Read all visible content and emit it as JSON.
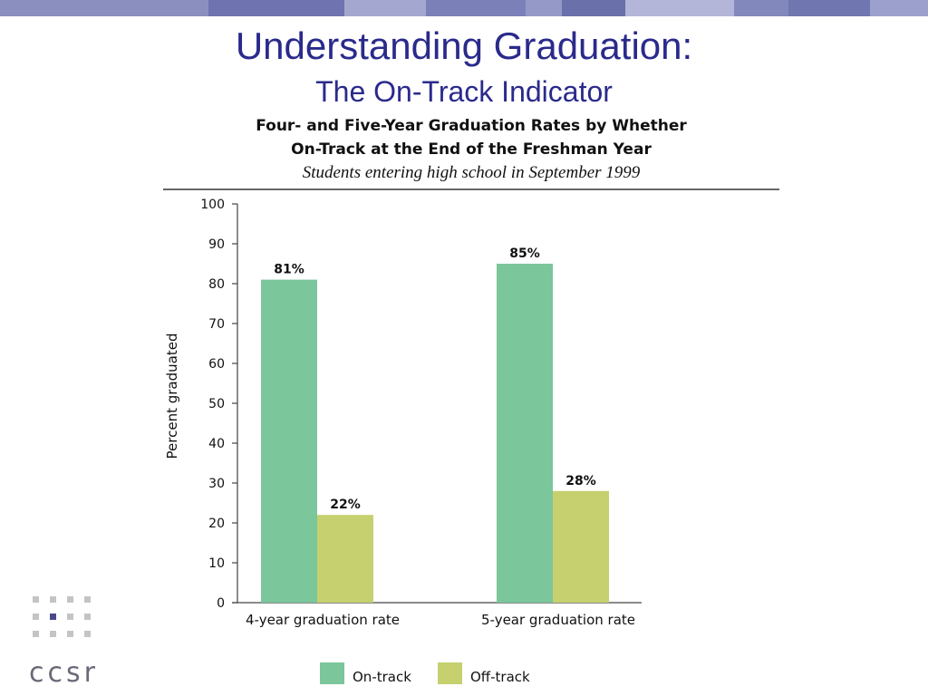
{
  "slide": {
    "title": "Understanding Graduation:",
    "subtitle": "The On-Track Indicator",
    "logo_text": "ccsr"
  },
  "colors": {
    "title": "#2a2a8c",
    "on_track": "#7bc69b",
    "off_track": "#c6d06e",
    "bar_strip": [
      "#8a8fc0",
      "#6f74b0",
      "#a4a8d0",
      "#7b80b8",
      "#9599c8",
      "#6a70aa",
      "#b3b6d8",
      "#8388bc",
      "#7076b0",
      "#9ca0cc"
    ]
  },
  "chart_data": {
    "type": "bar",
    "title": "Four- and Five-Year Graduation Rates by Whether",
    "title_line2": "On-Track at the End of the Freshman Year",
    "subtitle": "Students entering high school in September 1999",
    "ylabel": "Percent graduated",
    "xlabel": "",
    "ylim": [
      0,
      100
    ],
    "yticks": [
      0,
      10,
      20,
      30,
      40,
      50,
      60,
      70,
      80,
      90,
      100
    ],
    "categories": [
      "4-year graduation rate",
      "5-year graduation rate"
    ],
    "series": [
      {
        "name": "On-track",
        "values": [
          81,
          85
        ],
        "labels": [
          "81%",
          "85%"
        ],
        "color": "#7bc69b"
      },
      {
        "name": "Off-track",
        "values": [
          22,
          28
        ],
        "labels": [
          "22%",
          "28%"
        ],
        "color": "#c6d06e"
      }
    ],
    "legend": "bottom"
  }
}
